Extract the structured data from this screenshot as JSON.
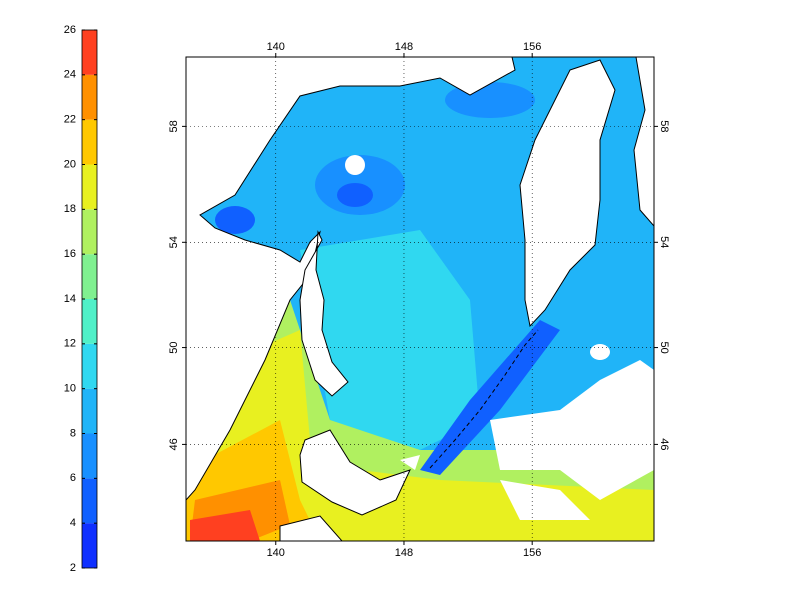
{
  "map": {
    "colorbar": {
      "ticks": [
        2,
        4,
        6,
        8,
        10,
        12,
        14,
        16,
        18,
        20,
        22,
        24,
        26
      ],
      "colors": [
        "#1030ff",
        "#1060ff",
        "#1890ff",
        "#20b4f8",
        "#30d8f0",
        "#50f0c8",
        "#80f090",
        "#b0f060",
        "#e8f020",
        "#ffc800",
        "#ff9000",
        "#ff4020"
      ]
    },
    "axes": {
      "projection": "mercator",
      "xlim": [
        134.4,
        163.6
      ],
      "ylim": [
        41.7,
        60.2
      ],
      "xticks": [
        140,
        148,
        156
      ],
      "yticks": [
        46,
        50,
        54,
        58
      ],
      "grid": true
    }
  }
}
